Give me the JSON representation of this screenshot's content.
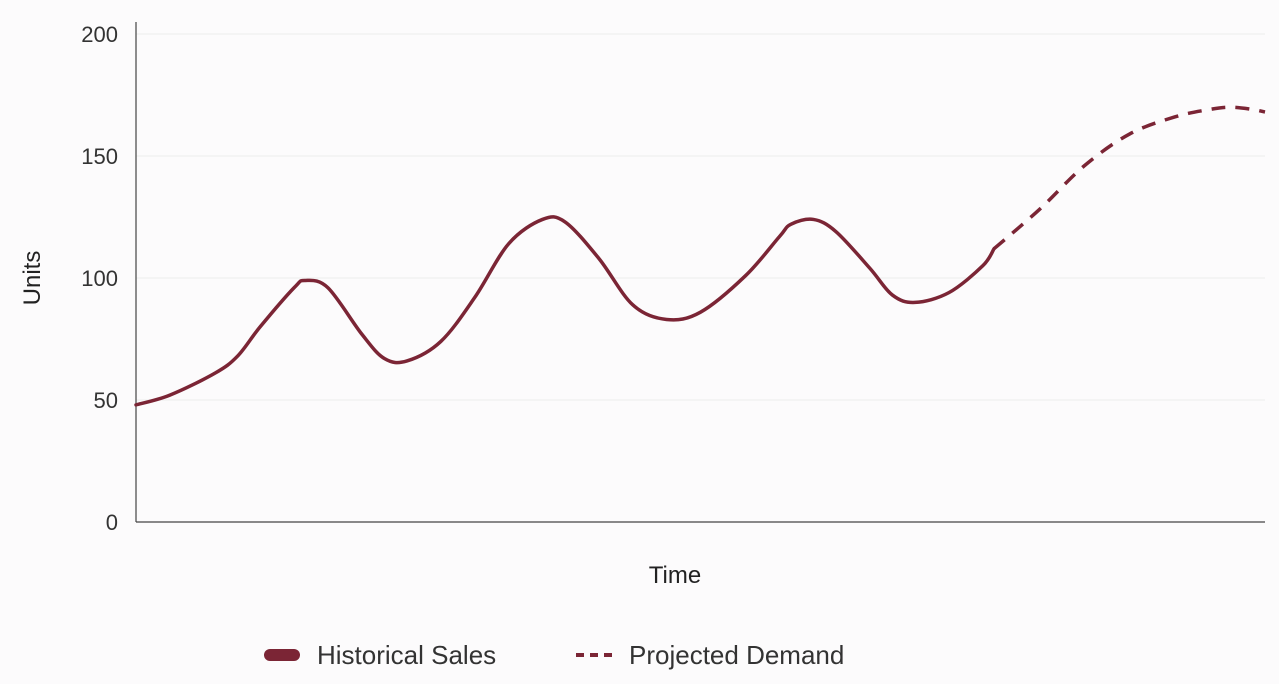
{
  "chart_data": {
    "type": "line",
    "title": "",
    "xlabel": "Time",
    "ylabel": "Units",
    "ylim": [
      0,
      200
    ],
    "yticks": [
      0,
      50,
      100,
      150,
      200
    ],
    "xlim": [
      0,
      1
    ],
    "grid": "horizontal",
    "legend_position": "bottom-center",
    "series": [
      {
        "name": "Historical Sales",
        "style": "solid",
        "color": "#7b2535",
        "points": [
          [
            0.0,
            48
          ],
          [
            0.03,
            52
          ],
          [
            0.07,
            61
          ],
          [
            0.09,
            68
          ],
          [
            0.11,
            80
          ],
          [
            0.14,
            96
          ],
          [
            0.15,
            99
          ],
          [
            0.17,
            96
          ],
          [
            0.2,
            77
          ],
          [
            0.22,
            67
          ],
          [
            0.24,
            66
          ],
          [
            0.27,
            74
          ],
          [
            0.3,
            92
          ],
          [
            0.33,
            114
          ],
          [
            0.36,
            124
          ],
          [
            0.38,
            123
          ],
          [
            0.41,
            108
          ],
          [
            0.44,
            89
          ],
          [
            0.47,
            83
          ],
          [
            0.5,
            86
          ],
          [
            0.54,
            101
          ],
          [
            0.57,
            117
          ],
          [
            0.58,
            122
          ],
          [
            0.6,
            124
          ],
          [
            0.62,
            119
          ],
          [
            0.65,
            104
          ],
          [
            0.67,
            93
          ],
          [
            0.69,
            90
          ],
          [
            0.72,
            94
          ],
          [
            0.75,
            105
          ],
          [
            0.76,
            112
          ]
        ]
      },
      {
        "name": "Projected Demand",
        "style": "dashed",
        "color": "#7b2535",
        "points": [
          [
            0.76,
            112
          ],
          [
            0.8,
            128
          ],
          [
            0.84,
            146
          ],
          [
            0.88,
            159
          ],
          [
            0.92,
            166
          ],
          [
            0.95,
            169
          ],
          [
            0.97,
            170
          ],
          [
            0.99,
            169
          ],
          [
            1.0,
            168
          ]
        ]
      }
    ]
  }
}
